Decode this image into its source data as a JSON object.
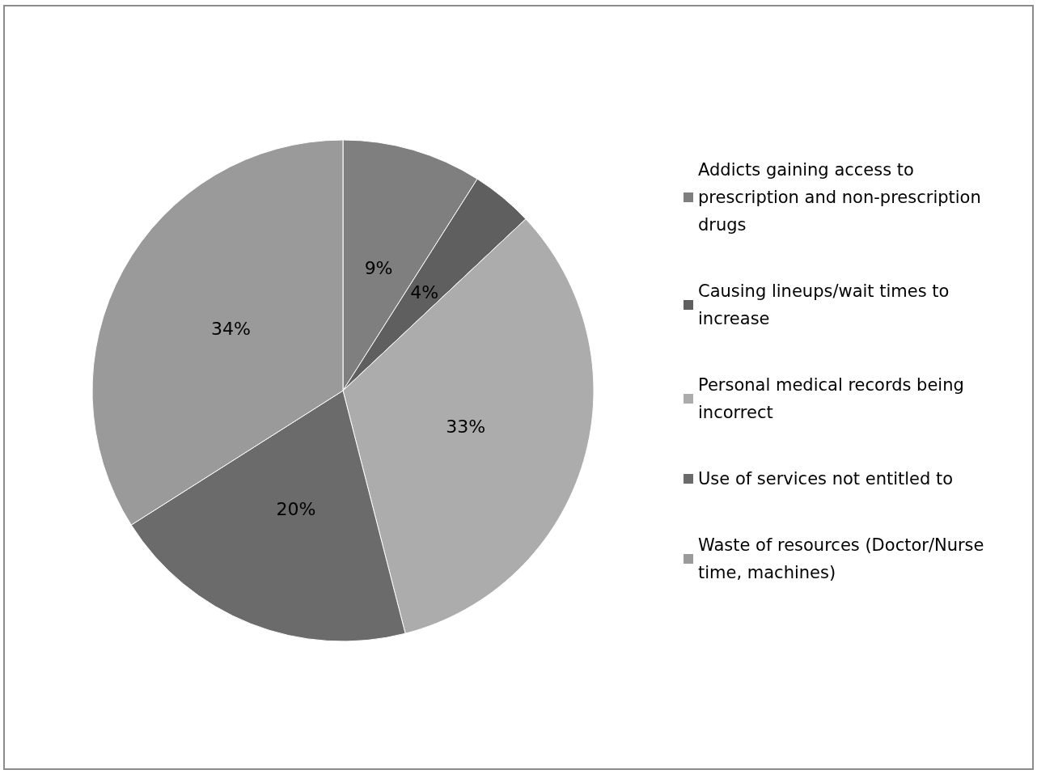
{
  "chart_data": {
    "type": "pie",
    "categories": [
      "Addicts gaining access to prescription and non-prescription drugs",
      "Causing lineups/wait times to increase",
      "Personal medical records being incorrect",
      "Use of services not entitled to",
      "Waste of resources (Doctor/Nurse time, machines)"
    ],
    "values": [
      9,
      4,
      33,
      20,
      34
    ],
    "colors": [
      "#7f7f7f",
      "#5f5f5f",
      "#acacac",
      "#6b6b6b",
      "#9a9a9a"
    ],
    "value_labels": [
      "9%",
      "4%",
      "33%",
      "20%",
      "34%"
    ],
    "legend": "right"
  }
}
